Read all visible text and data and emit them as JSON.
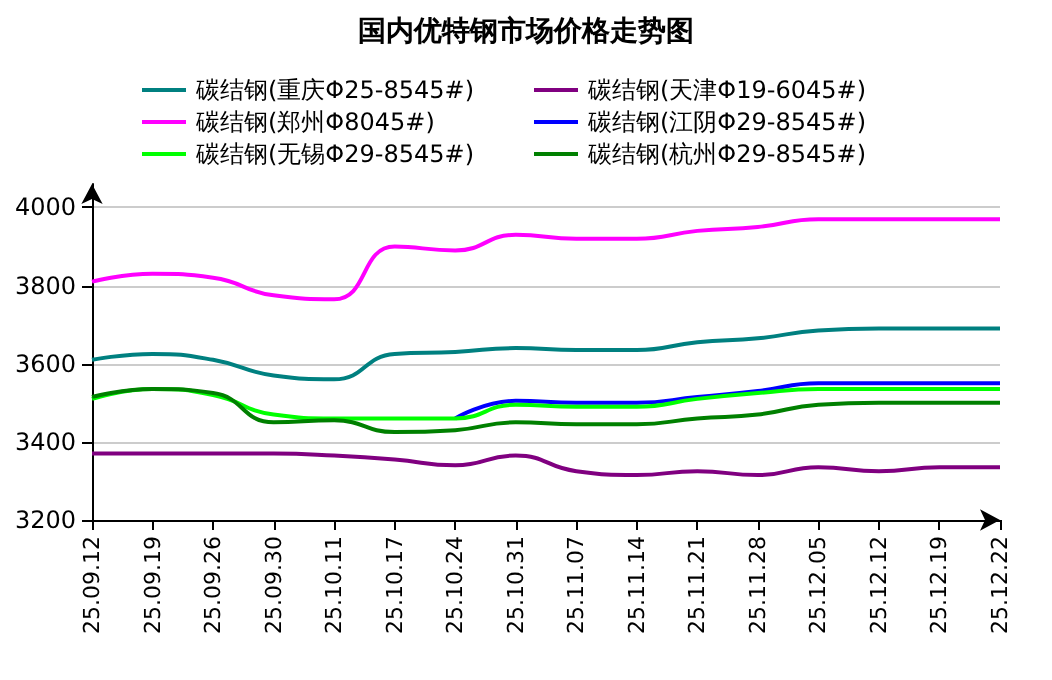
{
  "chart_data": {
    "type": "line",
    "title": "国内优特钢市场价格走势图",
    "categories": [
      "25.09.12",
      "25.09.19",
      "25.09.26",
      "25.09.30",
      "25.10.11",
      "25.10.17",
      "25.10.24",
      "25.10.31",
      "25.11.07",
      "25.11.14",
      "25.11.21",
      "25.11.28",
      "25.12.05",
      "25.12.12",
      "25.12.19",
      "25.12.22"
    ],
    "series": [
      {
        "name": "碳结钢(重庆Φ25-8545#)",
        "color": "#008080",
        "values": [
          3610,
          3625,
          3610,
          3570,
          3560,
          3625,
          3630,
          3640,
          3635,
          3635,
          3655,
          3665,
          3685,
          3690,
          3690,
          3690
        ]
      },
      {
        "name": "碳结钢(天津Φ19-6045#)",
        "color": "#800080",
        "values": [
          3370,
          3370,
          3370,
          3370,
          3365,
          3355,
          3340,
          3365,
          3325,
          3315,
          3325,
          3315,
          3335,
          3325,
          3335,
          3335
        ]
      },
      {
        "name": "碳结钢(郑州Φ8045#)",
        "color": "#ff00ff",
        "values": [
          3810,
          3830,
          3820,
          3775,
          3765,
          3900,
          3890,
          3930,
          3920,
          3920,
          3940,
          3950,
          3970,
          3970,
          3970,
          3970
        ]
      },
      {
        "name": "碳结钢(江阴Φ29-8545#)",
        "color": "#0000ff",
        "values": [
          null,
          null,
          null,
          null,
          null,
          null,
          3460,
          3505,
          3500,
          3500,
          3515,
          3530,
          3550,
          3550,
          3550,
          3550
        ]
      },
      {
        "name": "碳结钢(无锡Φ29-8545#)",
        "color": "#00ff00",
        "values": [
          3510,
          3535,
          3520,
          3470,
          3460,
          3460,
          3460,
          3495,
          3490,
          3490,
          3510,
          3525,
          3535,
          3535,
          3535,
          3535
        ]
      },
      {
        "name": "碳结钢(杭州Φ29-8545#)",
        "color": "#008000",
        "values": [
          3515,
          3535,
          3525,
          3450,
          3455,
          3425,
          3430,
          3450,
          3445,
          3445,
          3460,
          3470,
          3495,
          3500,
          3500,
          3500
        ]
      }
    ],
    "ylim": [
      3200,
      4060
    ],
    "yticks": [
      3200,
      3400,
      3600,
      3800,
      4000
    ],
    "grid": "y",
    "legend": "top",
    "marker": "none",
    "line_style": "solid"
  }
}
